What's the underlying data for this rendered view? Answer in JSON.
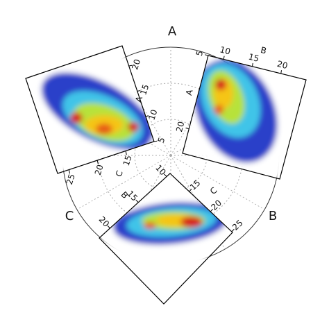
{
  "chart_data": {
    "type": "polar-density",
    "corner_labels": [
      "A",
      "B",
      "C"
    ],
    "panels": [
      {
        "axes": [
          {
            "name": "A",
            "lim": [
              5,
              24
            ],
            "ticks": [
              5,
              10,
              15,
              20
            ]
          },
          {
            "name": "C",
            "lim": [
              10,
              27
            ],
            "ticks": [
              15,
              20,
              25
            ]
          }
        ]
      },
      {
        "axes": [
          {
            "name": "B",
            "lim": [
              7.3,
              24.4
            ],
            "ticks": [
              10,
              15,
              20
            ]
          },
          {
            "name": "A",
            "lim": [
              5,
              25
            ],
            "ticks": [
              5,
              20
            ]
          }
        ]
      },
      {
        "axes": [
          {
            "name": "B",
            "lim": [
              9.4,
              21.9
            ],
            "ticks": [
              10,
              15,
              20
            ]
          },
          {
            "name": "C",
            "lim": [
              10.5,
              25.2
            ],
            "ticks": [
              15,
              20,
              25
            ]
          }
        ]
      }
    ]
  }
}
